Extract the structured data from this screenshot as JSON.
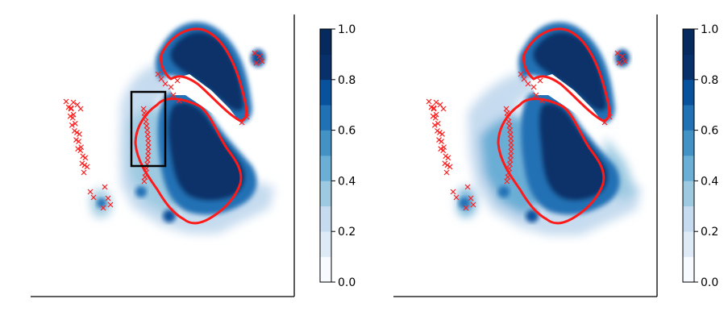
{
  "chart_data": [
    {
      "type": "heatmap",
      "title": "",
      "xlabel": "",
      "ylabel": "",
      "colorbar": {
        "min": 0.0,
        "max": 1.0,
        "levels": [
          0.0,
          0.1,
          0.2,
          0.3,
          0.4,
          0.5,
          0.6,
          0.7,
          0.8,
          0.9,
          1.0
        ],
        "tick_values": [
          0.0,
          0.2,
          0.4,
          0.6,
          0.8,
          1.0
        ],
        "tick_labels": [
          "0.0",
          "0.2",
          "0.4",
          "0.6",
          "0.8",
          "1.0"
        ],
        "palette": [
          "#f7fbff",
          "#deebf7",
          "#c6dbef",
          "#9ecae1",
          "#6baed6",
          "#4292c6",
          "#2171b5",
          "#08519c",
          "#08306b",
          "#062a5e"
        ]
      },
      "overlay": {
        "color": "#ff0000",
        "marker": "x"
      },
      "inset_box": true
    },
    {
      "type": "heatmap",
      "title": "",
      "xlabel": "",
      "ylabel": "",
      "colorbar": {
        "min": 0.0,
        "max": 1.0,
        "levels": [
          0.0,
          0.1,
          0.2,
          0.3,
          0.4,
          0.5,
          0.6,
          0.7,
          0.8,
          0.9,
          1.0
        ],
        "tick_values": [
          0.0,
          0.2,
          0.4,
          0.6,
          0.8,
          1.0
        ],
        "tick_labels": [
          "0.0",
          "0.2",
          "0.4",
          "0.6",
          "0.8",
          "1.0"
        ],
        "palette": [
          "#f7fbff",
          "#deebf7",
          "#c6dbef",
          "#9ecae1",
          "#6baed6",
          "#4292c6",
          "#2171b5",
          "#08519c",
          "#08306b",
          "#062a5e"
        ]
      },
      "overlay": {
        "color": "#ff0000",
        "marker": "x"
      },
      "inset_box": false
    }
  ]
}
